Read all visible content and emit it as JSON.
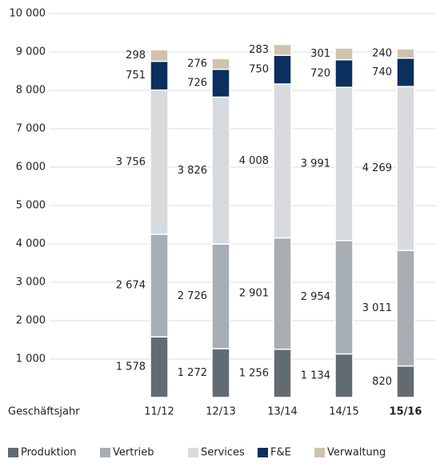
{
  "chart_data": {
    "type": "stacked_bar",
    "x_label": "Geschäftsjahr",
    "categories": [
      "11/12",
      "12/13",
      "13/14",
      "14/15",
      "15/16"
    ],
    "series": [
      {
        "name": "Produktion",
        "color": "#636b72",
        "values": [
          1578,
          1272,
          1256,
          1134,
          820
        ],
        "value_labels": [
          "1 578",
          "1 272",
          "1 256",
          "1 134",
          "820"
        ]
      },
      {
        "name": "Vertrieb",
        "color": "#a7aeb4",
        "values": [
          2674,
          2726,
          2901,
          2954,
          3011
        ],
        "value_labels": [
          "2 674",
          "2 726",
          "2 901",
          "2 954",
          "3 011"
        ]
      },
      {
        "name": "Services",
        "color": "#d7dbdd",
        "values": [
          3756,
          3826,
          4008,
          3991,
          4269
        ],
        "value_labels": [
          "3 756",
          "3 826",
          "4 008",
          "3 991",
          "4 269"
        ]
      },
      {
        "name": "F&E",
        "color": "#0b2f5e",
        "values": [
          751,
          726,
          750,
          720,
          740
        ],
        "value_labels": [
          "751",
          "726",
          "750",
          "720",
          "740"
        ]
      },
      {
        "name": "Verwaltung",
        "color": "#cfc3ae",
        "values": [
          298,
          276,
          283,
          301,
          240
        ],
        "value_labels": [
          "298",
          "276",
          "283",
          "301",
          "240"
        ]
      }
    ],
    "ylim": [
      0,
      10000
    ],
    "yticks": [
      {
        "value": 1000,
        "label": "1 000"
      },
      {
        "value": 2000,
        "label": "2 000"
      },
      {
        "value": 3000,
        "label": "3 000"
      },
      {
        "value": 4000,
        "label": "4 000"
      },
      {
        "value": 5000,
        "label": "5 000"
      },
      {
        "value": 6000,
        "label": "6 000"
      },
      {
        "value": 7000,
        "label": "7 000"
      },
      {
        "value": 8000,
        "label": "8 000"
      },
      {
        "value": 9000,
        "label": "9 000"
      },
      {
        "value": 10000,
        "label": "10 000"
      }
    ],
    "grid": true,
    "legend": "bottom"
  }
}
